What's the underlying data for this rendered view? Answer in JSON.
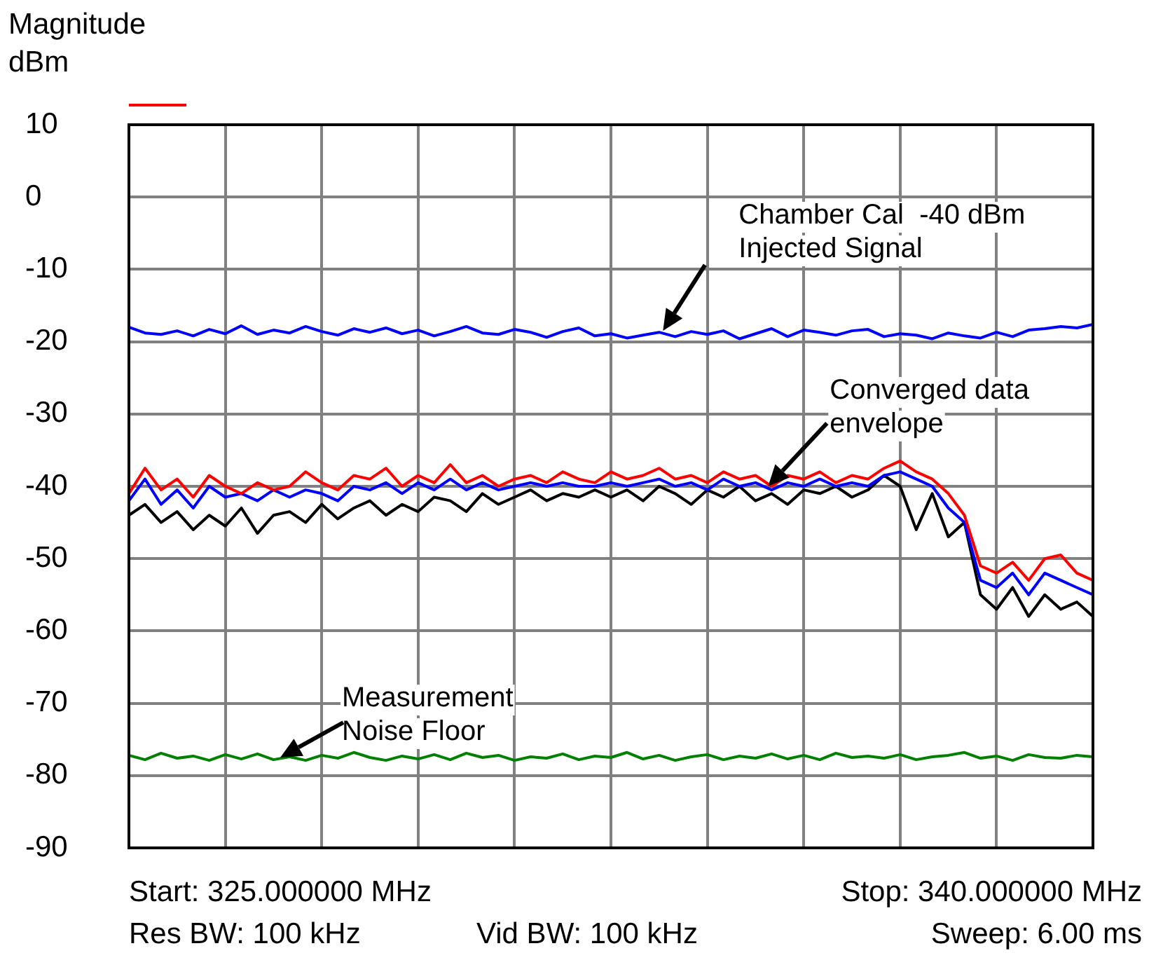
{
  "chart_data": {
    "type": "line",
    "ylabel": "Magnitude\ndBm",
    "categories": [
      null,
      null,
      null,
      null,
      null,
      null,
      null,
      null,
      null,
      null,
      null,
      null,
      null,
      null,
      null,
      null,
      null,
      null,
      null,
      null,
      null,
      null,
      null,
      null,
      null,
      null,
      null,
      null,
      null,
      null,
      null,
      null,
      null,
      null,
      null,
      null,
      null,
      null,
      null,
      null,
      null,
      null,
      null,
      null,
      null,
      null,
      null,
      null,
      null,
      null,
      null,
      null,
      null,
      null,
      null,
      null,
      null,
      null,
      null,
      null,
      null
    ],
    "series": [
      {
        "color": "#0000ff",
        "values": [
          -18,
          -18.8,
          -19,
          -18.5,
          -19.2,
          -18.3,
          -18.9,
          -17.8,
          -19,
          -18.4,
          -18.8,
          -17.9,
          -18.6,
          -19.1,
          -18.2,
          -18.7,
          -18.1,
          -18.9,
          -18.4,
          -19.2,
          -18.6,
          -17.9,
          -18.8,
          -19,
          -18.3,
          -18.7,
          -19.4,
          -18.6,
          -18.1,
          -19.2,
          -18.9,
          -19.5,
          -19.1,
          -18.7,
          -19.3,
          -18.6,
          -19,
          -18.5,
          -19.6,
          -18.9,
          -18.2,
          -19.3,
          -18.4,
          -18.7,
          -19.1,
          -18.5,
          -18.3,
          -19.3,
          -18.9,
          -19.1,
          -19.6,
          -18.8,
          -19.2,
          -19.5,
          -18.7,
          -19.3,
          -18.4,
          -18.2,
          -17.9,
          -18.1,
          -17.6
        ]
      },
      {
        "color": "#ff0000",
        "values": [
          -41,
          -37.5,
          -40.5,
          -39,
          -41.5,
          -38.5,
          -40,
          -41,
          -39.5,
          -40.5,
          -40,
          -38,
          -39.5,
          -40.5,
          -38.5,
          -39,
          -37.5,
          -40,
          -38.5,
          -39.5,
          -37,
          -39.5,
          -38.5,
          -40,
          -39,
          -38.5,
          -39.5,
          -38,
          -39,
          -39.5,
          -38,
          -39,
          -38.5,
          -37.5,
          -39,
          -38.5,
          -39.5,
          -38,
          -39,
          -38.5,
          -40,
          -38.5,
          -39,
          -38,
          -39.5,
          -38.5,
          -39,
          -37.5,
          -36.5,
          -38,
          -39,
          -41,
          -44,
          -51,
          -52,
          -50.5,
          -53,
          -50,
          -49.5,
          -52,
          -53
        ]
      },
      {
        "color": "#0000ff",
        "values": [
          -42,
          -39,
          -42.5,
          -40.5,
          -43,
          -40,
          -41.5,
          -41,
          -42,
          -40.5,
          -41.5,
          -40.5,
          -41,
          -42,
          -40,
          -40.5,
          -39.5,
          -41,
          -39.5,
          -40.5,
          -39,
          -40.5,
          -39.5,
          -40.5,
          -40,
          -39.5,
          -40,
          -39.5,
          -40,
          -40,
          -39.5,
          -40,
          -39.5,
          -39,
          -40,
          -39.5,
          -40.5,
          -39,
          -40,
          -39.5,
          -40.5,
          -39.5,
          -40,
          -39,
          -40,
          -39.5,
          -40,
          -38.5,
          -38,
          -39,
          -40,
          -43,
          -45,
          -53,
          -54,
          -52,
          -55,
          -52,
          -53,
          -54,
          -55
        ]
      },
      {
        "color": "#000000",
        "values": [
          -44,
          -42.5,
          -45,
          -43.5,
          -46,
          -44,
          -45.5,
          -43,
          -46.5,
          -44,
          -43.5,
          -45,
          -42.5,
          -44.5,
          -43,
          -42,
          -44,
          -42.5,
          -43.5,
          -41.5,
          -42,
          -43.5,
          -41,
          -42.5,
          -41.5,
          -40.5,
          -42,
          -41,
          -41.5,
          -40.5,
          -41.5,
          -40.5,
          -42,
          -40,
          -41,
          -42.5,
          -40.5,
          -41.5,
          -40,
          -42,
          -41,
          -42.5,
          -40.5,
          -41,
          -40,
          -41.5,
          -40.5,
          -38.5,
          -40,
          -46,
          -41,
          -47,
          -45,
          -55,
          -57,
          -54,
          -58,
          -55,
          -57,
          -56,
          -58
        ]
      },
      {
        "color": "#008000",
        "values": [
          -77.2,
          -77.8,
          -76.9,
          -77.6,
          -77.3,
          -77.9,
          -77.1,
          -77.7,
          -77,
          -77.8,
          -77.4,
          -77.9,
          -77.2,
          -77.6,
          -76.8,
          -77.5,
          -77.9,
          -77.3,
          -77.7,
          -77.1,
          -77.8,
          -76.9,
          -77.5,
          -77.2,
          -77.9,
          -77.4,
          -77.6,
          -77,
          -77.8,
          -77.3,
          -77.5,
          -76.8,
          -77.7,
          -77.2,
          -77.9,
          -77.4,
          -77.1,
          -77.8,
          -77.3,
          -77.6,
          -77,
          -77.7,
          -77.2,
          -77.8,
          -76.9,
          -77.5,
          -77.3,
          -77.6,
          -77.1,
          -77.8,
          -77.4,
          -77.2,
          -76.8,
          -77.6,
          -77.3,
          -77.9,
          -77.1,
          -77.5,
          -77.6,
          -77.2,
          -77.4
        ]
      }
    ],
    "ylim": [
      -90,
      10
    ],
    "yticks": [
      -90,
      -80,
      -70,
      -60,
      -50,
      -40,
      -30,
      -20,
      -10,
      0,
      10
    ],
    "tick_labels": "y",
    "grid": true,
    "legend": false,
    "marker": "none",
    "line_style": "solid",
    "annotations": [
      {
        "text": "Chamber Cal  -40 dBm\nInjected Signal",
        "y": -18.5
      },
      {
        "text": "Converged data\nenvelope",
        "y": -40
      },
      {
        "text": "Measurement\nNoise Floor",
        "y": -77.5
      },
      "Start: 325.000000 MHz",
      "Stop: 340.000000 MHz",
      "Res BW: 100 kHz",
      "Vid BW: 100 kHz",
      "Sweep: 6.00 ms"
    ]
  }
}
